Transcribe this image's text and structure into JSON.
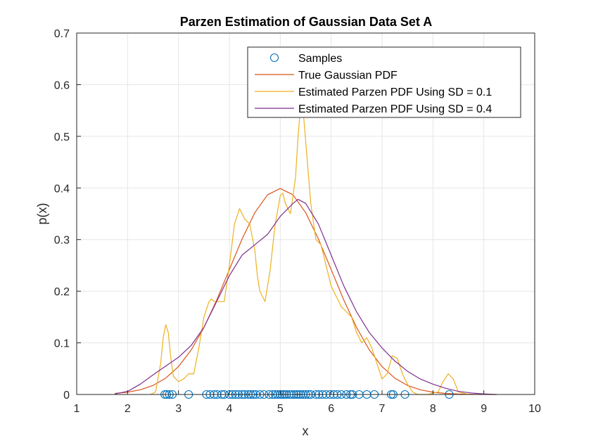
{
  "chart_data": {
    "type": "line",
    "title": "Parzen Estimation of Gaussian Data Set A",
    "xlabel": "x",
    "ylabel": "p(x)",
    "xlim": [
      1,
      10
    ],
    "ylim": [
      0,
      0.7
    ],
    "xticks": [
      "1",
      "2",
      "3",
      "4",
      "5",
      "6",
      "7",
      "8",
      "9",
      "10"
    ],
    "yticks": [
      "0",
      "0.1",
      "0.2",
      "0.3",
      "0.4",
      "0.5",
      "0.6",
      "0.7"
    ],
    "grid": true,
    "legend_position": "top-right",
    "colors": {
      "samples": "#0072BD",
      "true_pdf": "#D95319",
      "parzen_01": "#EDB120",
      "parzen_04": "#7E2F8E",
      "grid": "#E6E6E6",
      "axis": "#262626"
    },
    "series": [
      {
        "name": "Samples",
        "kind": "scatter",
        "x": [
          2.73,
          2.77,
          2.82,
          2.88,
          3.2,
          3.55,
          3.62,
          3.7,
          3.76,
          3.85,
          3.9,
          4.0,
          4.06,
          4.12,
          4.18,
          4.25,
          4.3,
          4.37,
          4.42,
          4.47,
          4.52,
          4.6,
          4.68,
          4.78,
          4.85,
          4.9,
          4.95,
          5.0,
          5.04,
          5.08,
          5.12,
          5.18,
          5.22,
          5.27,
          5.32,
          5.36,
          5.4,
          5.45,
          5.5,
          5.55,
          5.6,
          5.7,
          5.76,
          5.83,
          5.9,
          5.98,
          6.05,
          6.12,
          6.2,
          6.3,
          6.38,
          6.42,
          6.55,
          6.7,
          6.85,
          7.18,
          7.22,
          7.45,
          8.32
        ],
        "y": [
          0,
          0,
          0,
          0,
          0,
          0,
          0,
          0,
          0,
          0,
          0,
          0,
          0,
          0,
          0,
          0,
          0,
          0,
          0,
          0,
          0,
          0,
          0,
          0,
          0,
          0,
          0,
          0,
          0,
          0,
          0,
          0,
          0,
          0,
          0,
          0,
          0,
          0,
          0,
          0,
          0,
          0,
          0,
          0,
          0,
          0,
          0,
          0,
          0,
          0,
          0,
          0,
          0,
          0,
          0,
          0,
          0,
          0,
          0
        ]
      },
      {
        "name": "True Gaussian PDF",
        "kind": "line",
        "x": [
          1.75,
          2.0,
          2.25,
          2.5,
          2.75,
          3.0,
          3.25,
          3.5,
          3.75,
          4.0,
          4.25,
          4.5,
          4.75,
          5.0,
          5.25,
          5.5,
          5.75,
          6.0,
          6.25,
          6.5,
          6.75,
          7.0,
          7.25,
          7.5,
          7.75,
          8.0,
          8.25,
          8.5,
          8.75,
          9.0,
          9.25
        ],
        "y": [
          0.002,
          0.0044,
          0.0091,
          0.0175,
          0.0317,
          0.054,
          0.0863,
          0.1295,
          0.1826,
          0.242,
          0.3011,
          0.3521,
          0.3867,
          0.3989,
          0.3867,
          0.3521,
          0.3011,
          0.242,
          0.1826,
          0.1295,
          0.0863,
          0.054,
          0.0317,
          0.0175,
          0.0091,
          0.0044,
          0.002,
          0.0009,
          0.0004,
          0.0001,
          0.0
        ]
      },
      {
        "name": "Estimated Parzen PDF Using SD = 0.1",
        "kind": "line",
        "x": [
          2.45,
          2.55,
          2.65,
          2.7,
          2.75,
          2.8,
          2.85,
          2.9,
          3.0,
          3.1,
          3.2,
          3.3,
          3.4,
          3.5,
          3.6,
          3.65,
          3.7,
          3.8,
          3.9,
          4.0,
          4.1,
          4.2,
          4.3,
          4.4,
          4.5,
          4.55,
          4.6,
          4.7,
          4.8,
          4.9,
          5.0,
          5.05,
          5.1,
          5.2,
          5.3,
          5.35,
          5.4,
          5.45,
          5.5,
          5.6,
          5.7,
          5.8,
          5.9,
          6.0,
          6.1,
          6.2,
          6.3,
          6.4,
          6.5,
          6.6,
          6.7,
          6.8,
          6.9,
          7.0,
          7.1,
          7.2,
          7.3,
          7.4,
          7.5,
          7.6,
          7.7,
          7.9,
          8.1,
          8.2,
          8.3,
          8.4,
          8.5,
          8.7
        ],
        "y": [
          0.0,
          0.005,
          0.06,
          0.11,
          0.135,
          0.12,
          0.07,
          0.035,
          0.025,
          0.03,
          0.04,
          0.04,
          0.09,
          0.15,
          0.18,
          0.185,
          0.18,
          0.18,
          0.18,
          0.25,
          0.33,
          0.36,
          0.34,
          0.33,
          0.28,
          0.23,
          0.2,
          0.18,
          0.24,
          0.33,
          0.385,
          0.39,
          0.37,
          0.35,
          0.42,
          0.5,
          0.56,
          0.55,
          0.49,
          0.37,
          0.3,
          0.29,
          0.25,
          0.21,
          0.19,
          0.17,
          0.16,
          0.15,
          0.12,
          0.1,
          0.11,
          0.09,
          0.06,
          0.03,
          0.04,
          0.075,
          0.07,
          0.04,
          0.02,
          0.005,
          0.0,
          0.0,
          0.005,
          0.025,
          0.04,
          0.03,
          0.005,
          0.0
        ]
      },
      {
        "name": "Estimated Parzen PDF Using SD = 0.4",
        "kind": "line",
        "x": [
          1.75,
          2.0,
          2.25,
          2.5,
          2.75,
          3.0,
          3.25,
          3.5,
          3.75,
          4.0,
          4.25,
          4.5,
          4.75,
          5.0,
          5.25,
          5.35,
          5.5,
          5.75,
          6.0,
          6.25,
          6.5,
          6.75,
          7.0,
          7.25,
          7.5,
          7.75,
          8.0,
          8.25,
          8.5,
          8.75,
          9.0,
          9.25
        ],
        "y": [
          0.001,
          0.006,
          0.02,
          0.038,
          0.055,
          0.072,
          0.095,
          0.13,
          0.18,
          0.23,
          0.27,
          0.29,
          0.31,
          0.345,
          0.37,
          0.378,
          0.37,
          0.33,
          0.27,
          0.21,
          0.16,
          0.12,
          0.09,
          0.065,
          0.045,
          0.03,
          0.02,
          0.012,
          0.006,
          0.003,
          0.001,
          0.0
        ]
      }
    ]
  }
}
